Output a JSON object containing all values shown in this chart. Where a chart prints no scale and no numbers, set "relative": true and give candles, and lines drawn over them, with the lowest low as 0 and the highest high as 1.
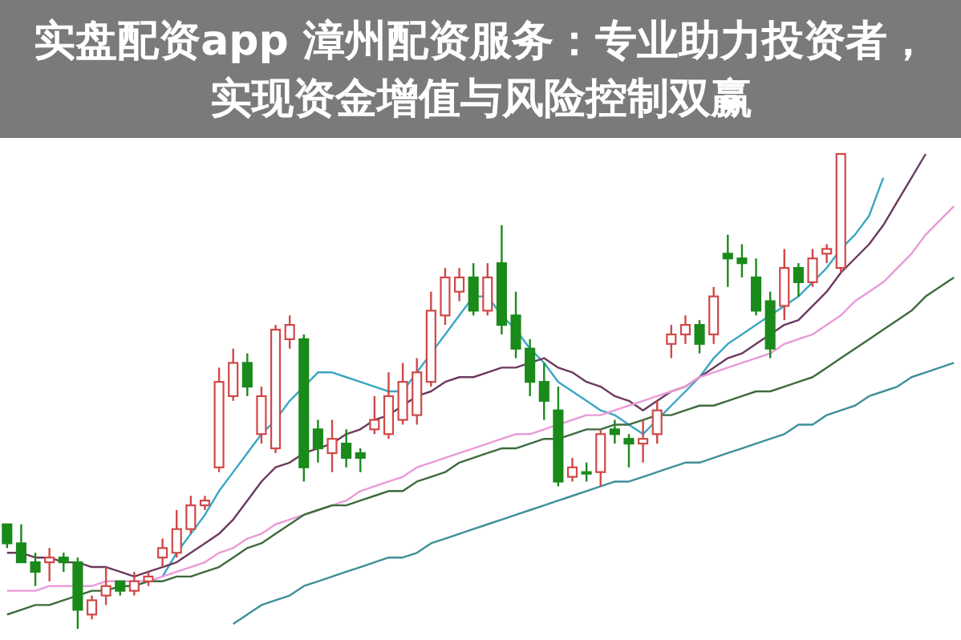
{
  "chart_data": {
    "type": "candlestick",
    "title": "实盘配资app 漳州配资服务：专业助力投资者，实现资金增值与风险控制双赢",
    "relative": true,
    "categories": [
      null,
      null,
      null,
      null,
      null,
      null,
      null,
      null,
      null,
      null,
      null,
      null,
      null,
      null,
      null,
      null,
      null,
      null,
      null,
      null,
      null,
      null,
      null,
      null,
      null,
      null,
      null,
      null,
      null,
      null,
      null,
      null,
      null,
      null,
      null,
      null,
      null,
      null,
      null,
      null,
      null,
      null,
      null,
      null,
      null,
      null,
      null,
      null,
      null,
      null,
      null,
      null,
      null,
      null,
      null,
      null,
      null,
      null,
      null,
      null,
      null,
      null,
      null,
      null,
      null,
      null,
      null,
      null
    ],
    "ohlc": [
      [
        0.22,
        0.22,
        0.17,
        0.18
      ],
      [
        0.18,
        0.22,
        0.14,
        0.14
      ],
      [
        0.14,
        0.16,
        0.09,
        0.12
      ],
      [
        0.14,
        0.17,
        0.1,
        0.15
      ],
      [
        0.15,
        0.16,
        0.12,
        0.14
      ],
      [
        0.14,
        0.15,
        0,
        0.04
      ],
      [
        0.03,
        0.07,
        0.02,
        0.06
      ],
      [
        0.07,
        0.13,
        0.05,
        0.09
      ],
      [
        0.1,
        0.1,
        0.07,
        0.08
      ],
      [
        0.08,
        0.12,
        0.07,
        0.1
      ],
      [
        0.1,
        0.12,
        0.09,
        0.11
      ],
      [
        0.15,
        0.19,
        0.13,
        0.17
      ],
      [
        0.16,
        0.25,
        0.15,
        0.21
      ],
      [
        0.21,
        0.28,
        0.2,
        0.26
      ],
      [
        0.26,
        0.28,
        0.25,
        0.27
      ],
      [
        0.34,
        0.55,
        0.33,
        0.52
      ],
      [
        0.49,
        0.59,
        0.48,
        0.56
      ],
      [
        0.56,
        0.58,
        0.49,
        0.51
      ],
      [
        0.41,
        0.51,
        0.39,
        0.49
      ],
      [
        0.38,
        0.64,
        0.37,
        0.63
      ],
      [
        0.61,
        0.66,
        0.59,
        0.64
      ],
      [
        0.61,
        0.62,
        0.31,
        0.34
      ],
      [
        0.42,
        0.44,
        0.35,
        0.38
      ],
      [
        0.37,
        0.44,
        0.33,
        0.4
      ],
      [
        0.39,
        0.42,
        0.34,
        0.36
      ],
      [
        0.37,
        0.38,
        0.33,
        0.36
      ],
      [
        0.42,
        0.49,
        0.41,
        0.44
      ],
      [
        0.41,
        0.54,
        0.4,
        0.49
      ],
      [
        0.44,
        0.56,
        0.43,
        0.52
      ],
      [
        0.45,
        0.57,
        0.43,
        0.54
      ],
      [
        0.52,
        0.71,
        0.51,
        0.67
      ],
      [
        0.66,
        0.76,
        0.64,
        0.74
      ],
      [
        0.71,
        0.76,
        0.69,
        0.74
      ],
      [
        0.74,
        0.77,
        0.66,
        0.67
      ],
      [
        0.67,
        0.77,
        0.66,
        0.74
      ],
      [
        0.77,
        0.85,
        0.62,
        0.64
      ],
      [
        0.66,
        0.71,
        0.57,
        0.59
      ],
      [
        0.59,
        0.61,
        0.49,
        0.52
      ],
      [
        0.52,
        0.56,
        0.44,
        0.48
      ],
      [
        0.46,
        0.51,
        0.3,
        0.31
      ],
      [
        0.32,
        0.36,
        0.31,
        0.34
      ],
      [
        0.33,
        0.35,
        0.31,
        0.33
      ],
      [
        0.33,
        0.42,
        0.3,
        0.41
      ],
      [
        0.42,
        0.44,
        0.39,
        0.41
      ],
      [
        0.4,
        0.41,
        0.34,
        0.39
      ],
      [
        0.39,
        0.44,
        0.35,
        0.4
      ],
      [
        0.41,
        0.48,
        0.39,
        0.46
      ],
      [
        0.6,
        0.64,
        0.57,
        0.62
      ],
      [
        0.62,
        0.66,
        0.6,
        0.64
      ],
      [
        0.64,
        0.65,
        0.58,
        0.6
      ],
      [
        0.62,
        0.72,
        0.6,
        0.7
      ],
      [
        0.79,
        0.83,
        0.72,
        0.78
      ],
      [
        0.78,
        0.81,
        0.74,
        0.77
      ],
      [
        0.74,
        0.78,
        0.66,
        0.67
      ],
      [
        0.69,
        0.71,
        0.57,
        0.59
      ],
      [
        0.68,
        0.8,
        0.65,
        0.76
      ],
      [
        0.76,
        0.77,
        0.7,
        0.73
      ],
      [
        0.73,
        0.8,
        0.72,
        0.78
      ],
      [
        0.79,
        0.81,
        0.77,
        0.8
      ],
      [
        0.76,
        1.0,
        0.75,
        1.0
      ],
      null,
      null,
      null,
      null,
      null,
      null,
      null,
      null
    ],
    "colors": [
      "#1a8a1a",
      "#1a8a1a",
      "#1a8a1a",
      "#d04848",
      "#1a8a1a",
      "#1a8a1a",
      "#d04848",
      "#d04848",
      "#1a8a1a",
      "#d04848",
      "#d04848",
      "#d04848",
      "#d04848",
      "#d04848",
      "#d04848",
      "#d04848",
      "#d04848",
      "#1a8a1a",
      "#d04848",
      "#d04848",
      "#d04848",
      "#1a8a1a",
      "#1a8a1a",
      "#d04848",
      "#1a8a1a",
      "#1a8a1a",
      "#d04848",
      "#d04848",
      "#d04848",
      "#d04848",
      "#d04848",
      "#d04848",
      "#d04848",
      "#1a8a1a",
      "#d04848",
      "#1a8a1a",
      "#1a8a1a",
      "#1a8a1a",
      "#1a8a1a",
      "#1a8a1a",
      "#d04848",
      "#1a8a1a",
      "#d04848",
      "#1a8a1a",
      "#1a8a1a",
      "#d04848",
      "#d04848",
      "#d04848",
      "#d04848",
      "#1a8a1a",
      "#d04848",
      "#1a8a1a",
      "#1a8a1a",
      "#1a8a1a",
      "#1a8a1a",
      "#d04848",
      "#1a8a1a",
      "#d04848",
      "#d04848",
      "#d04848",
      null,
      null,
      null,
      null,
      null,
      null,
      null,
      null
    ],
    "series": [
      {
        "type": "line",
        "color": "#3aa6c4",
        "values": [
          null,
          null,
          null,
          null,
          null,
          null,
          null,
          null,
          null,
          null,
          null,
          0.11,
          0.16,
          0.2,
          0.24,
          0.29,
          0.33,
          0.37,
          0.41,
          0.44,
          0.48,
          0.51,
          0.54,
          0.54,
          0.53,
          0.52,
          0.51,
          0.5,
          0.5,
          0.54,
          0.58,
          0.62,
          0.66,
          0.7,
          0.7,
          0.66,
          0.63,
          0.59,
          0.56,
          0.52,
          0.5,
          0.48,
          0.46,
          0.45,
          0.43,
          0.41,
          0.44,
          0.47,
          0.5,
          0.53,
          0.57,
          0.6,
          0.62,
          0.64,
          0.66,
          0.68,
          0.7,
          0.73,
          0.76,
          0.8,
          0.83,
          0.87,
          0.95,
          null,
          null,
          null,
          null,
          null
        ]
      },
      {
        "type": "line",
        "color": "#6b3a5e",
        "values": [
          0.16,
          0.16,
          0.15,
          0.15,
          0.14,
          0.14,
          0.13,
          0.13,
          0.12,
          0.11,
          0.12,
          0.13,
          0.14,
          0.16,
          0.18,
          0.2,
          0.23,
          0.27,
          0.31,
          0.34,
          0.35,
          0.37,
          0.38,
          0.39,
          0.41,
          0.42,
          0.44,
          0.45,
          0.47,
          0.49,
          0.5,
          0.52,
          0.53,
          0.53,
          0.54,
          0.55,
          0.55,
          0.56,
          0.57,
          0.55,
          0.54,
          0.52,
          0.51,
          0.49,
          0.48,
          0.46,
          0.48,
          0.5,
          0.51,
          0.53,
          0.55,
          0.57,
          0.58,
          0.6,
          0.62,
          0.64,
          0.65,
          0.68,
          0.71,
          0.75,
          0.78,
          0.81,
          0.85,
          0.9,
          0.95,
          1.0,
          null,
          null
        ]
      },
      {
        "type": "line",
        "color": "#e99ad8",
        "values": [
          0.08,
          0.08,
          0.08,
          0.09,
          0.09,
          0.09,
          0.09,
          0.1,
          0.1,
          0.1,
          0.1,
          0.11,
          0.12,
          0.13,
          0.14,
          0.16,
          0.17,
          0.19,
          0.2,
          0.22,
          0.23,
          0.24,
          0.25,
          0.26,
          0.27,
          0.29,
          0.3,
          0.31,
          0.32,
          0.34,
          0.35,
          0.36,
          0.37,
          0.38,
          0.39,
          0.4,
          0.41,
          0.41,
          0.42,
          0.43,
          0.44,
          0.45,
          0.45,
          0.46,
          0.47,
          0.48,
          0.49,
          0.5,
          0.51,
          0.53,
          0.54,
          0.55,
          0.56,
          0.57,
          0.58,
          0.6,
          0.61,
          0.62,
          0.64,
          0.66,
          0.69,
          0.71,
          0.73,
          0.76,
          0.79,
          0.83,
          0.86,
          0.89
        ]
      },
      {
        "type": "line",
        "color": "#3d6b3d",
        "values": [
          0.03,
          0.04,
          0.05,
          0.05,
          0.06,
          0.07,
          0.08,
          0.08,
          0.09,
          0.09,
          0.1,
          0.1,
          0.11,
          0.11,
          0.12,
          0.13,
          0.15,
          0.17,
          0.18,
          0.2,
          0.22,
          0.24,
          0.25,
          0.26,
          0.26,
          0.27,
          0.28,
          0.29,
          0.29,
          0.31,
          0.32,
          0.33,
          0.35,
          0.36,
          0.37,
          0.38,
          0.38,
          0.39,
          0.4,
          0.4,
          0.41,
          0.42,
          0.42,
          0.43,
          0.43,
          0.44,
          0.45,
          0.45,
          0.46,
          0.47,
          0.47,
          0.48,
          0.49,
          0.5,
          0.5,
          0.51,
          0.52,
          0.53,
          0.55,
          0.57,
          0.59,
          0.61,
          0.63,
          0.65,
          0.67,
          0.7,
          0.72,
          0.74
        ]
      },
      {
        "type": "line",
        "color": "#3f8f9a",
        "values": [
          null,
          null,
          null,
          null,
          null,
          null,
          null,
          null,
          null,
          null,
          null,
          null,
          null,
          null,
          null,
          null,
          0.01,
          0.03,
          0.05,
          0.06,
          0.07,
          0.09,
          0.1,
          0.11,
          0.12,
          0.13,
          0.14,
          0.15,
          0.15,
          0.16,
          0.18,
          0.19,
          0.2,
          0.21,
          0.22,
          0.23,
          0.24,
          0.25,
          0.26,
          0.27,
          0.28,
          0.29,
          0.3,
          0.31,
          0.31,
          0.32,
          0.33,
          0.34,
          0.35,
          0.35,
          0.36,
          0.37,
          0.38,
          0.39,
          0.4,
          0.41,
          0.43,
          0.43,
          0.45,
          0.46,
          0.47,
          0.49,
          0.5,
          0.51,
          0.53,
          0.54,
          0.55,
          0.56
        ]
      }
    ]
  }
}
